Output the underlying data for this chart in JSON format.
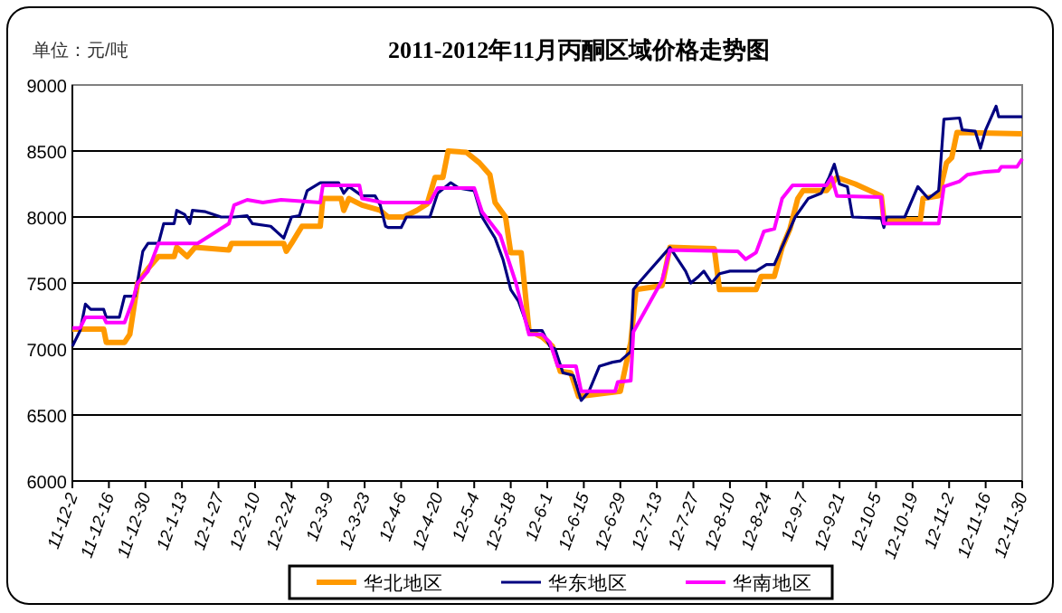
{
  "chart_data": {
    "type": "line",
    "title": "2011-2012年11月丙酮区域价格走势图",
    "annotations": [
      "单位：元/吨"
    ],
    "xlim": [
      "2011-12-02",
      "2012-11-30"
    ],
    "xticks": [
      {
        "value": "2011-12-02",
        "label": "11-12-2"
      },
      {
        "value": "2011-12-16",
        "label": "11-12-16"
      },
      {
        "value": "2011-12-30",
        "label": "11-12-30"
      },
      {
        "value": "2012-01-13",
        "label": "12-1-13"
      },
      {
        "value": "2012-01-27",
        "label": "12-1-27"
      },
      {
        "value": "2012-02-10",
        "label": "12-2-10"
      },
      {
        "value": "2012-02-24",
        "label": "12-2-24"
      },
      {
        "value": "2012-03-09",
        "label": "12-3-9"
      },
      {
        "value": "2012-03-23",
        "label": "12-3-23"
      },
      {
        "value": "2012-04-06",
        "label": "12-4-6"
      },
      {
        "value": "2012-04-20",
        "label": "12-4-20"
      },
      {
        "value": "2012-05-04",
        "label": "12-5-4"
      },
      {
        "value": "2012-05-18",
        "label": "12-5-18"
      },
      {
        "value": "2012-06-01",
        "label": "12-6-1"
      },
      {
        "value": "2012-06-15",
        "label": "12-6-15"
      },
      {
        "value": "2012-06-29",
        "label": "12-6-29"
      },
      {
        "value": "2012-07-13",
        "label": "12-7-13"
      },
      {
        "value": "2012-07-27",
        "label": "12-7-27"
      },
      {
        "value": "2012-08-10",
        "label": "12-8-10"
      },
      {
        "value": "2012-08-24",
        "label": "12-8-24"
      },
      {
        "value": "2012-09-07",
        "label": "12-9-7"
      },
      {
        "value": "2012-09-21",
        "label": "12-9-21"
      },
      {
        "value": "2012-10-05",
        "label": "12-10-5"
      },
      {
        "value": "2012-10-19",
        "label": "12-10-19"
      },
      {
        "value": "2012-11-02",
        "label": "12-11-2"
      },
      {
        "value": "2012-11-16",
        "label": "12-11-16"
      },
      {
        "value": "2012-11-30",
        "label": "12-11-30"
      }
    ],
    "ylim": [
      6000,
      9000
    ],
    "yticks": [
      6000,
      6500,
      7000,
      7500,
      8000,
      8500,
      9000
    ],
    "grid": "y",
    "legend": "bottom",
    "marker": "none",
    "line_style": "solid",
    "series": [
      {
        "name": "华北地区",
        "color": "#ff9900",
        "x": [
          "2011-12-02",
          "2011-12-14",
          "2011-12-15",
          "2011-12-22",
          "2011-12-24",
          "2011-12-27",
          "2011-12-31",
          "2012-01-04",
          "2012-01-10",
          "2012-01-11",
          "2012-01-15",
          "2012-01-18",
          "2012-01-31",
          "2012-02-01",
          "2012-02-21",
          "2012-02-22",
          "2012-02-24",
          "2012-02-28",
          "2012-03-06",
          "2012-03-07",
          "2012-03-14",
          "2012-03-15",
          "2012-03-17",
          "2012-03-22",
          "2012-03-29",
          "2012-04-01",
          "2012-04-07",
          "2012-04-12",
          "2012-04-16",
          "2012-04-19",
          "2012-04-22",
          "2012-04-24",
          "2012-05-01",
          "2012-05-06",
          "2012-05-10",
          "2012-05-12",
          "2012-05-16",
          "2012-05-18",
          "2012-05-22",
          "2012-05-25",
          "2012-05-30",
          "2012-06-03",
          "2012-06-06",
          "2012-06-10",
          "2012-06-13",
          "2012-06-29",
          "2012-07-03",
          "2012-07-05",
          "2012-07-15",
          "2012-07-18",
          "2012-08-04",
          "2012-08-06",
          "2012-08-20",
          "2012-08-22",
          "2012-08-27",
          "2012-08-30",
          "2012-09-02",
          "2012-09-05",
          "2012-09-07",
          "2012-09-16",
          "2012-09-20",
          "2012-09-27",
          "2012-10-07",
          "2012-10-08",
          "2012-10-22",
          "2012-10-23",
          "2012-10-29",
          "2012-11-01",
          "2012-11-03",
          "2012-11-05",
          "2012-11-30"
        ],
        "values": [
          7150,
          7150,
          7050,
          7050,
          7110,
          7500,
          7610,
          7700,
          7700,
          7770,
          7700,
          7770,
          7750,
          7800,
          7800,
          7740,
          7800,
          7930,
          7930,
          8140,
          8140,
          8050,
          8140,
          8090,
          8050,
          8000,
          8000,
          8050,
          8100,
          8300,
          8300,
          8500,
          8490,
          8410,
          8320,
          8110,
          8000,
          7730,
          7730,
          7140,
          7090,
          7020,
          6830,
          6820,
          6640,
          6680,
          7050,
          7450,
          7480,
          7770,
          7760,
          7450,
          7450,
          7550,
          7550,
          7770,
          7910,
          8140,
          8200,
          8200,
          8300,
          8250,
          8160,
          7980,
          7980,
          8140,
          8160,
          8410,
          8450,
          8640,
          8630
        ]
      },
      {
        "name": "华东地区",
        "color": "#000080",
        "x": [
          "2011-12-02",
          "2011-12-05",
          "2011-12-07",
          "2011-12-09",
          "2011-12-14",
          "2011-12-15",
          "2011-12-20",
          "2011-12-22",
          "2011-12-26",
          "2011-12-29",
          "2011-12-31",
          "2012-01-04",
          "2012-01-06",
          "2012-01-10",
          "2012-01-11",
          "2012-01-14",
          "2012-01-16",
          "2012-01-17",
          "2012-01-22",
          "2012-01-28",
          "2012-02-02",
          "2012-02-07",
          "2012-02-09",
          "2012-02-16",
          "2012-02-21",
          "2012-02-24",
          "2012-02-27",
          "2012-03-01",
          "2012-03-06",
          "2012-03-13",
          "2012-03-15",
          "2012-03-17",
          "2012-03-22",
          "2012-03-27",
          "2012-03-29",
          "2012-03-31",
          "2012-04-01",
          "2012-04-06",
          "2012-04-08",
          "2012-04-17",
          "2012-04-20",
          "2012-04-25",
          "2012-04-28",
          "2012-05-04",
          "2012-05-07",
          "2012-05-12",
          "2012-05-15",
          "2012-05-18",
          "2012-05-21",
          "2012-05-25",
          "2012-05-30",
          "2012-06-02",
          "2012-06-04",
          "2012-06-07",
          "2012-06-11",
          "2012-06-14",
          "2012-06-17",
          "2012-06-21",
          "2012-06-26",
          "2012-06-29",
          "2012-07-03",
          "2012-07-04",
          "2012-07-06",
          "2012-07-18",
          "2012-07-24",
          "2012-07-26",
          "2012-07-29",
          "2012-07-31",
          "2012-08-03",
          "2012-08-06",
          "2012-08-10",
          "2012-08-20",
          "2012-08-24",
          "2012-08-27",
          "2012-08-31",
          "2012-09-04",
          "2012-09-09",
          "2012-09-14",
          "2012-09-17",
          "2012-09-19",
          "2012-09-21",
          "2012-09-24",
          "2012-09-26",
          "2012-10-07",
          "2012-10-08",
          "2012-10-09",
          "2012-10-16",
          "2012-10-21",
          "2012-10-25",
          "2012-10-29",
          "2012-10-31",
          "2012-11-06",
          "2012-11-07",
          "2012-11-12",
          "2012-11-14",
          "2012-11-16",
          "2012-11-20",
          "2012-11-21",
          "2012-11-30"
        ],
        "values": [
          7020,
          7140,
          7340,
          7300,
          7300,
          7240,
          7240,
          7400,
          7400,
          7740,
          7800,
          7800,
          7950,
          7950,
          8050,
          8020,
          7950,
          8050,
          8040,
          8000,
          8000,
          8010,
          7950,
          7930,
          7840,
          8000,
          8010,
          8200,
          8260,
          8260,
          8180,
          8230,
          8160,
          8160,
          8090,
          7930,
          7920,
          7920,
          8000,
          8000,
          8180,
          8260,
          8220,
          8200,
          8000,
          7840,
          7680,
          7450,
          7360,
          7140,
          7140,
          7020,
          7000,
          6820,
          6800,
          6610,
          6680,
          6870,
          6900,
          6910,
          6980,
          7450,
          7500,
          7770,
          7590,
          7500,
          7550,
          7590,
          7500,
          7570,
          7590,
          7590,
          7640,
          7640,
          7820,
          8000,
          8140,
          8180,
          8300,
          8400,
          8250,
          8230,
          8000,
          7990,
          7920,
          8000,
          8000,
          8230,
          8140,
          8200,
          8740,
          8750,
          8660,
          8650,
          8520,
          8660,
          8840,
          8760,
          8760
        ]
      },
      {
        "name": "华南地区",
        "color": "#ff00ff",
        "x": [
          "2011-12-02",
          "2011-12-05",
          "2011-12-07",
          "2011-12-14",
          "2011-12-15",
          "2011-12-22",
          "2011-12-25",
          "2011-12-27",
          "2011-12-31",
          "2012-01-04",
          "2012-01-19",
          "2012-01-31",
          "2012-02-02",
          "2012-02-07",
          "2012-02-13",
          "2012-02-20",
          "2012-03-06",
          "2012-03-07",
          "2012-03-21",
          "2012-03-22",
          "2012-03-30",
          "2012-04-17",
          "2012-04-20",
          "2012-05-04",
          "2012-05-07",
          "2012-05-14",
          "2012-05-20",
          "2012-05-25",
          "2012-05-30",
          "2012-06-02",
          "2012-06-05",
          "2012-06-12",
          "2012-06-14",
          "2012-06-27",
          "2012-06-28",
          "2012-07-03",
          "2012-07-04",
          "2012-07-15",
          "2012-07-18",
          "2012-08-13",
          "2012-08-16",
          "2012-08-20",
          "2012-08-23",
          "2012-08-27",
          "2012-08-30",
          "2012-09-03",
          "2012-09-16",
          "2012-09-18",
          "2012-09-20",
          "2012-10-07",
          "2012-10-08",
          "2012-10-29",
          "2012-10-31",
          "2012-11-06",
          "2012-11-09",
          "2012-11-15",
          "2012-11-21",
          "2012-11-22",
          "2012-11-28",
          "2012-11-30"
        ],
        "values": [
          7160,
          7160,
          7240,
          7240,
          7200,
          7200,
          7360,
          7500,
          7590,
          7800,
          7800,
          7950,
          8090,
          8130,
          8110,
          8130,
          8110,
          8240,
          8240,
          8140,
          8110,
          8110,
          8220,
          8220,
          8040,
          7860,
          7500,
          7110,
          7110,
          7050,
          6870,
          6870,
          6680,
          6680,
          6750,
          6760,
          7130,
          7520,
          7750,
          7740,
          7680,
          7730,
          7890,
          7910,
          8140,
          8240,
          8240,
          8300,
          8160,
          8150,
          7950,
          7950,
          8230,
          8270,
          8320,
          8340,
          8350,
          8380,
          8380,
          8440
        ]
      }
    ]
  }
}
